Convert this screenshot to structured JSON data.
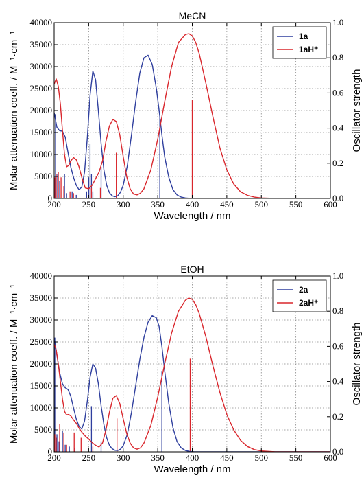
{
  "chart_data": [
    {
      "type": "line",
      "title": "MeCN",
      "xlabel": "Wavelength / nm",
      "ylabel": "Molar attenuation coeff. / M⁻¹·cm⁻¹",
      "ylabel_right": "Oscillator strength",
      "xlim": [
        200,
        600
      ],
      "ylim": [
        0,
        40000
      ],
      "ylim_right": [
        0,
        1.0
      ],
      "x_ticks": [
        "200",
        "250",
        "300",
        "350",
        "400",
        "450",
        "500",
        "550",
        "600"
      ],
      "y_ticks": [
        "0",
        "5000",
        "10000",
        "15000",
        "20000",
        "25000",
        "30000",
        "35000",
        "40000"
      ],
      "y_ticks_right": [
        "0.0",
        "0.2",
        "0.4",
        "0.6",
        "0.8",
        "1.0"
      ],
      "grid": true,
      "legend_position": "top-right",
      "series": [
        {
          "name": "1a",
          "color": "#2f3f9e",
          "x": [
            200,
            204,
            208,
            212,
            216,
            220,
            224,
            228,
            232,
            236,
            240,
            244,
            248,
            252,
            256,
            260,
            264,
            268,
            272,
            276,
            280,
            284,
            288,
            292,
            296,
            300,
            306,
            312,
            318,
            324,
            330,
            336,
            342,
            348,
            352,
            356,
            360,
            366,
            372,
            378,
            384,
            390,
            396,
            402,
            410,
            420,
            440,
            600
          ],
          "y": [
            19500,
            16200,
            15400,
            15300,
            14000,
            10500,
            7200,
            4800,
            3000,
            2000,
            2600,
            6000,
            13800,
            23500,
            29000,
            27000,
            20000,
            12500,
            6500,
            3000,
            1300,
            600,
            400,
            600,
            1400,
            3000,
            7500,
            14500,
            22000,
            28500,
            32000,
            32600,
            30500,
            25000,
            20000,
            14500,
            9500,
            4800,
            2000,
            800,
            300,
            100,
            30,
            0,
            0,
            0,
            0,
            0
          ]
        },
        {
          "name": "1aH⁺",
          "color": "#d9262c",
          "x": [
            200,
            203,
            206,
            209,
            212,
            215,
            218,
            221,
            224,
            228,
            232,
            236,
            240,
            245,
            250,
            255,
            260,
            265,
            270,
            275,
            280,
            285,
            290,
            295,
            300,
            305,
            310,
            315,
            320,
            325,
            330,
            340,
            350,
            360,
            370,
            380,
            390,
            395,
            400,
            405,
            410,
            420,
            430,
            440,
            450,
            460,
            470,
            480,
            490,
            500,
            520,
            600
          ],
          "y": [
            26000,
            27200,
            25500,
            21500,
            15500,
            10000,
            7200,
            7500,
            8500,
            9300,
            8800,
            7200,
            4800,
            2400,
            2200,
            3000,
            4500,
            6000,
            8500,
            13000,
            16500,
            18000,
            17500,
            14500,
            9500,
            5000,
            2200,
            1000,
            800,
            1200,
            2200,
            6500,
            13500,
            22000,
            30000,
            35500,
            37300,
            37500,
            37000,
            35500,
            33000,
            26000,
            18500,
            11500,
            6500,
            3300,
            1500,
            700,
            300,
            100,
            0,
            0
          ]
        }
      ],
      "sticks": [
        {
          "series": "1a",
          "x": [
            202,
            205,
            208,
            215,
            218,
            226,
            232,
            247,
            250,
            252,
            254,
            256,
            268,
            353
          ],
          "f": [
            0.48,
            0.14,
            0.1,
            0.14,
            0.03,
            0.04,
            0.02,
            0.04,
            0.12,
            0.31,
            0.14,
            0.04,
            0.18,
            0.49
          ]
        },
        {
          "series": "1aH⁺",
          "x": [
            201,
            203,
            206,
            210,
            214,
            223,
            228,
            254,
            267,
            290,
            400
          ],
          "f": [
            0.12,
            0.14,
            0.15,
            0.12,
            0.07,
            0.04,
            0.03,
            0.06,
            0.06,
            0.26,
            0.56
          ]
        }
      ]
    },
    {
      "type": "line",
      "title": "EtOH",
      "xlabel": "Wavelength / nm",
      "ylabel": "Molar attenuation coeff. / M⁻¹·cm⁻¹",
      "ylabel_right": "Oscillator strength",
      "xlim": [
        200,
        600
      ],
      "ylim": [
        0,
        40000
      ],
      "ylim_right": [
        0,
        1.0
      ],
      "x_ticks": [
        "200",
        "250",
        "300",
        "350",
        "400",
        "450",
        "500",
        "550",
        "600"
      ],
      "y_ticks": [
        "0",
        "5000",
        "10000",
        "15000",
        "20000",
        "25000",
        "30000",
        "35000",
        "40000"
      ],
      "y_ticks_right": [
        "0.0",
        "0.2",
        "0.4",
        "0.6",
        "0.8",
        "1.0"
      ],
      "grid": true,
      "legend_position": "top-right",
      "series": [
        {
          "name": "2a",
          "color": "#2f3f9e",
          "x": [
            200,
            204,
            208,
            212,
            216,
            220,
            224,
            228,
            232,
            236,
            240,
            244,
            248,
            252,
            256,
            260,
            264,
            268,
            272,
            276,
            280,
            284,
            288,
            292,
            296,
            300,
            306,
            312,
            318,
            324,
            330,
            336,
            342,
            348,
            352,
            356,
            360,
            366,
            372,
            378,
            384,
            390,
            396,
            402,
            410,
            420,
            440,
            600
          ],
          "y": [
            26000,
            22000,
            18000,
            15500,
            14600,
            14200,
            12700,
            10000,
            7500,
            5800,
            5200,
            7000,
            11500,
            17000,
            20000,
            19000,
            15500,
            10500,
            6200,
            3200,
            1500,
            700,
            350,
            300,
            600,
            1400,
            4000,
            9000,
            15000,
            21000,
            26000,
            29500,
            31000,
            30500,
            28500,
            24000,
            18500,
            11000,
            5500,
            2300,
            900,
            300,
            100,
            30,
            0,
            0,
            0,
            0
          ]
        },
        {
          "name": "2aH⁺",
          "color": "#d9262c",
          "x": [
            200,
            203,
            206,
            209,
            212,
            215,
            218,
            221,
            224,
            228,
            232,
            236,
            240,
            245,
            250,
            255,
            260,
            265,
            270,
            275,
            280,
            285,
            290,
            295,
            300,
            305,
            310,
            315,
            320,
            325,
            330,
            340,
            350,
            360,
            370,
            380,
            390,
            395,
            400,
            405,
            410,
            420,
            430,
            440,
            450,
            460,
            470,
            480,
            490,
            500,
            520,
            600
          ],
          "y": [
            24500,
            23200,
            20000,
            16000,
            12000,
            9200,
            8400,
            8500,
            8200,
            7300,
            6500,
            5400,
            4500,
            3600,
            2900,
            2100,
            1500,
            1100,
            2000,
            5000,
            9000,
            12200,
            12800,
            11000,
            7500,
            4200,
            2000,
            900,
            600,
            900,
            2000,
            6000,
            12500,
            20000,
            27000,
            32000,
            34500,
            35000,
            34700,
            33500,
            31500,
            26000,
            19500,
            13500,
            8500,
            5000,
            2600,
            1200,
            500,
            200,
            0,
            0
          ]
        }
      ],
      "sticks": [
        {
          "series": "2a",
          "x": [
            201,
            204,
            207,
            212,
            216,
            222,
            230,
            254,
            268,
            356
          ],
          "f": [
            0.65,
            0.1,
            0.06,
            0.12,
            0.04,
            0.03,
            0.02,
            0.26,
            0.06,
            0.46
          ]
        },
        {
          "series": "2aH⁺",
          "x": [
            201,
            203,
            208,
            214,
            218,
            229,
            239,
            256,
            291,
            397
          ],
          "f": [
            0.1,
            0.08,
            0.16,
            0.11,
            0.04,
            0.11,
            0.08,
            0.03,
            0.19,
            0.53
          ]
        }
      ]
    }
  ]
}
